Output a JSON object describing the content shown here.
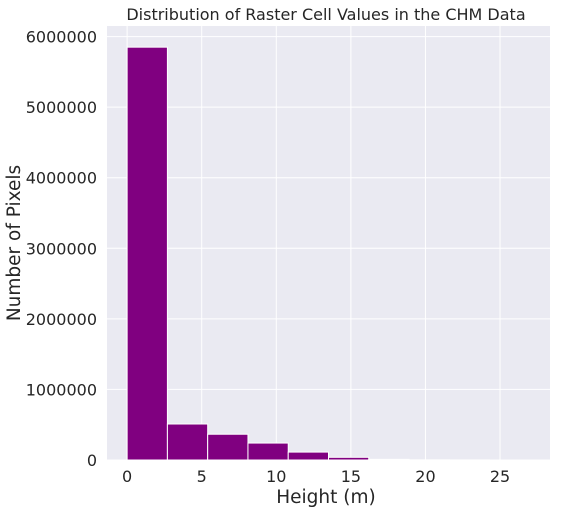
{
  "chart_data": {
    "type": "bar",
    "title": "Distribution of Raster Cell Values in the CHM Data",
    "xlabel": "Height (m)",
    "ylabel": "Number of Pixels",
    "bin_edges": [
      0.0,
      2.7,
      5.4,
      8.1,
      10.8,
      13.5,
      16.2,
      18.9,
      21.6,
      24.3,
      27.0
    ],
    "values": [
      5850000,
      510000,
      365000,
      240000,
      112000,
      38000,
      9000,
      2500,
      800,
      300
    ],
    "xlim": [
      -1.35,
      28.35
    ],
    "ylim": [
      0,
      6150000
    ],
    "xticks": [
      0,
      5,
      10,
      15,
      20,
      25
    ],
    "xtick_labels": [
      "0",
      "5",
      "10",
      "15",
      "20",
      "25"
    ],
    "yticks": [
      0,
      1000000,
      2000000,
      3000000,
      4000000,
      5000000,
      6000000
    ],
    "ytick_labels": [
      "0",
      "1000000",
      "2000000",
      "3000000",
      "4000000",
      "5000000",
      "6000000"
    ],
    "grid": true,
    "bar_color": "#800080",
    "edge_color": "#ffffff",
    "background_color": "#eaeaf2",
    "grid_color": "#ffffff"
  }
}
